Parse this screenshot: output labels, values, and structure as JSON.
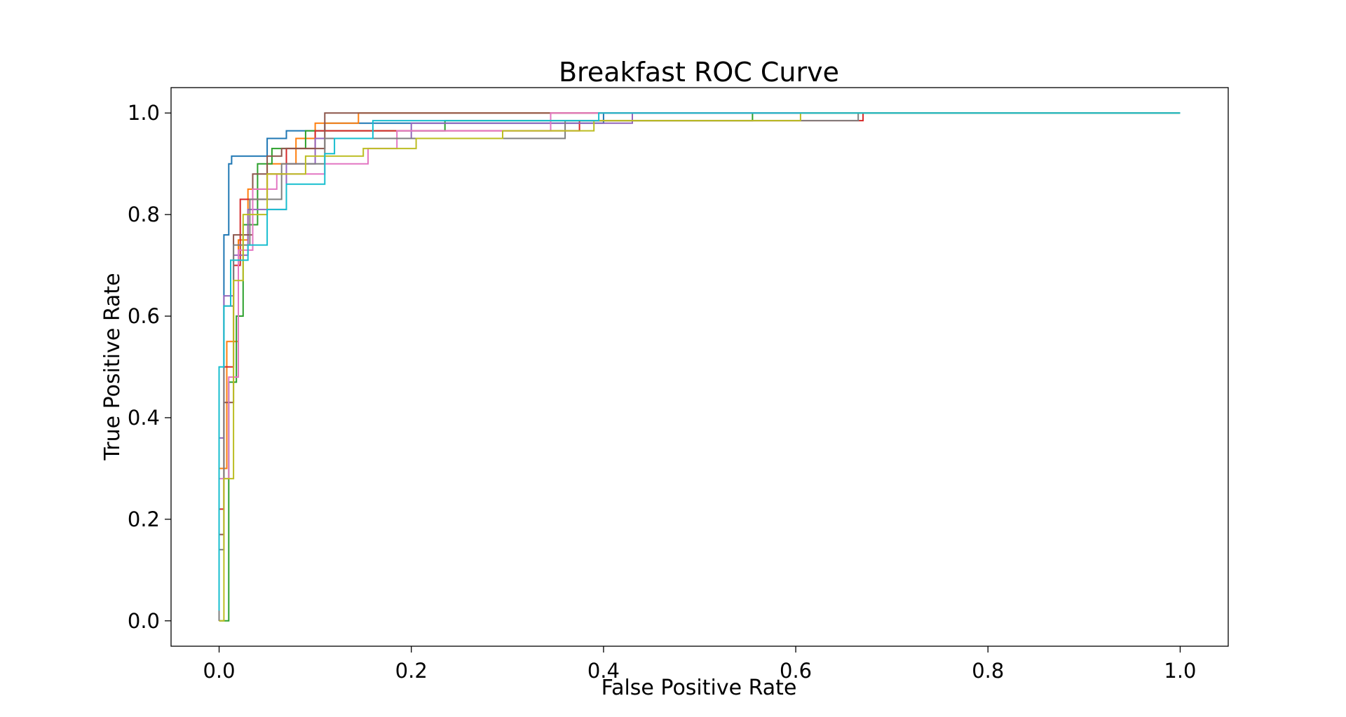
{
  "chart_data": {
    "type": "line",
    "title": "Breakfast ROC Curve",
    "xlabel": "False Positive Rate",
    "ylabel": "True Positive Rate",
    "xlim": [
      -0.05,
      1.05
    ],
    "ylim": [
      -0.05,
      1.05
    ],
    "xticks": [
      0.0,
      0.2,
      0.4,
      0.6,
      0.8,
      1.0
    ],
    "xtick_labels": [
      "0.0",
      "0.2",
      "0.4",
      "0.6",
      "0.8",
      "1.0"
    ],
    "yticks": [
      0.0,
      0.2,
      0.4,
      0.6,
      0.8,
      1.0
    ],
    "ytick_labels": [
      "0.0",
      "0.2",
      "0.4",
      "0.6",
      "0.8",
      "1.0"
    ],
    "grid": false,
    "series": [
      {
        "color": "#1f77b4",
        "points": [
          [
            0,
            0
          ],
          [
            0,
            0.5
          ],
          [
            0.005,
            0.5
          ],
          [
            0.005,
            0.76
          ],
          [
            0.01,
            0.76
          ],
          [
            0.01,
            0.9
          ],
          [
            0.013,
            0.9
          ],
          [
            0.013,
            0.915
          ],
          [
            0.05,
            0.915
          ],
          [
            0.05,
            0.95
          ],
          [
            0.07,
            0.95
          ],
          [
            0.07,
            0.965
          ],
          [
            0.11,
            0.965
          ],
          [
            0.11,
            0.98
          ],
          [
            0.4,
            0.98
          ],
          [
            0.4,
            1.0
          ],
          [
            1.0,
            1.0
          ]
        ]
      },
      {
        "color": "#ff7f0e",
        "points": [
          [
            0,
            0
          ],
          [
            0,
            0.3
          ],
          [
            0.008,
            0.3
          ],
          [
            0.008,
            0.55
          ],
          [
            0.02,
            0.55
          ],
          [
            0.02,
            0.75
          ],
          [
            0.03,
            0.75
          ],
          [
            0.03,
            0.85
          ],
          [
            0.05,
            0.85
          ],
          [
            0.05,
            0.9
          ],
          [
            0.08,
            0.9
          ],
          [
            0.08,
            0.95
          ],
          [
            0.1,
            0.95
          ],
          [
            0.1,
            0.98
          ],
          [
            0.145,
            0.98
          ],
          [
            0.145,
            1.0
          ],
          [
            1.0,
            1.0
          ]
        ]
      },
      {
        "color": "#2ca02c",
        "points": [
          [
            0,
            0
          ],
          [
            0.01,
            0
          ],
          [
            0.01,
            0.47
          ],
          [
            0.018,
            0.47
          ],
          [
            0.018,
            0.6
          ],
          [
            0.025,
            0.6
          ],
          [
            0.025,
            0.78
          ],
          [
            0.04,
            0.78
          ],
          [
            0.04,
            0.9
          ],
          [
            0.055,
            0.9
          ],
          [
            0.055,
            0.93
          ],
          [
            0.09,
            0.93
          ],
          [
            0.09,
            0.965
          ],
          [
            0.235,
            0.965
          ],
          [
            0.235,
            0.985
          ],
          [
            0.555,
            0.985
          ],
          [
            0.555,
            1.0
          ],
          [
            1.0,
            1.0
          ]
        ]
      },
      {
        "color": "#d62728",
        "points": [
          [
            0,
            0
          ],
          [
            0,
            0.22
          ],
          [
            0.005,
            0.22
          ],
          [
            0.005,
            0.5
          ],
          [
            0.015,
            0.5
          ],
          [
            0.015,
            0.7
          ],
          [
            0.022,
            0.7
          ],
          [
            0.022,
            0.83
          ],
          [
            0.05,
            0.83
          ],
          [
            0.05,
            0.88
          ],
          [
            0.07,
            0.88
          ],
          [
            0.07,
            0.93
          ],
          [
            0.1,
            0.93
          ],
          [
            0.1,
            0.965
          ],
          [
            0.375,
            0.965
          ],
          [
            0.375,
            0.985
          ],
          [
            0.67,
            0.985
          ],
          [
            0.67,
            1.0
          ],
          [
            1.0,
            1.0
          ]
        ]
      },
      {
        "color": "#9467bd",
        "points": [
          [
            0,
            0
          ],
          [
            0,
            0.36
          ],
          [
            0.005,
            0.36
          ],
          [
            0.005,
            0.64
          ],
          [
            0.015,
            0.64
          ],
          [
            0.015,
            0.72
          ],
          [
            0.03,
            0.72
          ],
          [
            0.03,
            0.81
          ],
          [
            0.07,
            0.81
          ],
          [
            0.07,
            0.9
          ],
          [
            0.1,
            0.9
          ],
          [
            0.1,
            0.95
          ],
          [
            0.2,
            0.95
          ],
          [
            0.2,
            0.98
          ],
          [
            0.43,
            0.98
          ],
          [
            0.43,
            1.0
          ],
          [
            1.0,
            1.0
          ]
        ]
      },
      {
        "color": "#8c564b",
        "points": [
          [
            0,
            0
          ],
          [
            0,
            0.17
          ],
          [
            0.005,
            0.17
          ],
          [
            0.005,
            0.43
          ],
          [
            0.015,
            0.43
          ],
          [
            0.015,
            0.76
          ],
          [
            0.035,
            0.76
          ],
          [
            0.035,
            0.88
          ],
          [
            0.05,
            0.88
          ],
          [
            0.05,
            0.915
          ],
          [
            0.065,
            0.915
          ],
          [
            0.065,
            0.93
          ],
          [
            0.11,
            0.93
          ],
          [
            0.11,
            1.0
          ],
          [
            1.0,
            1.0
          ]
        ]
      },
      {
        "color": "#e377c2",
        "points": [
          [
            0,
            0
          ],
          [
            0,
            0.28
          ],
          [
            0.01,
            0.28
          ],
          [
            0.01,
            0.48
          ],
          [
            0.02,
            0.48
          ],
          [
            0.02,
            0.73
          ],
          [
            0.035,
            0.73
          ],
          [
            0.035,
            0.85
          ],
          [
            0.06,
            0.85
          ],
          [
            0.06,
            0.88
          ],
          [
            0.11,
            0.88
          ],
          [
            0.11,
            0.9
          ],
          [
            0.155,
            0.9
          ],
          [
            0.155,
            0.93
          ],
          [
            0.185,
            0.93
          ],
          [
            0.185,
            0.965
          ],
          [
            0.345,
            0.965
          ],
          [
            0.345,
            1.0
          ],
          [
            1.0,
            1.0
          ]
        ]
      },
      {
        "color": "#7f7f7f",
        "points": [
          [
            0,
            0
          ],
          [
            0,
            0.14
          ],
          [
            0.005,
            0.14
          ],
          [
            0.005,
            0.62
          ],
          [
            0.015,
            0.62
          ],
          [
            0.015,
            0.74
          ],
          [
            0.032,
            0.74
          ],
          [
            0.032,
            0.83
          ],
          [
            0.065,
            0.83
          ],
          [
            0.065,
            0.9
          ],
          [
            0.11,
            0.9
          ],
          [
            0.11,
            0.95
          ],
          [
            0.36,
            0.95
          ],
          [
            0.36,
            0.985
          ],
          [
            0.665,
            0.985
          ],
          [
            0.665,
            1.0
          ],
          [
            1.0,
            1.0
          ]
        ]
      },
      {
        "color": "#bcbd22",
        "points": [
          [
            0,
            0
          ],
          [
            0.005,
            0
          ],
          [
            0.005,
            0.28
          ],
          [
            0.015,
            0.28
          ],
          [
            0.015,
            0.67
          ],
          [
            0.025,
            0.67
          ],
          [
            0.025,
            0.8
          ],
          [
            0.05,
            0.8
          ],
          [
            0.05,
            0.88
          ],
          [
            0.09,
            0.88
          ],
          [
            0.09,
            0.915
          ],
          [
            0.15,
            0.915
          ],
          [
            0.15,
            0.93
          ],
          [
            0.205,
            0.93
          ],
          [
            0.205,
            0.95
          ],
          [
            0.295,
            0.95
          ],
          [
            0.295,
            0.965
          ],
          [
            0.39,
            0.965
          ],
          [
            0.39,
            0.985
          ],
          [
            0.605,
            0.985
          ],
          [
            0.605,
            1.0
          ],
          [
            1.0,
            1.0
          ]
        ]
      },
      {
        "color": "#17becf",
        "points": [
          [
            0,
            0.02
          ],
          [
            0,
            0.5
          ],
          [
            0.005,
            0.5
          ],
          [
            0.005,
            0.62
          ],
          [
            0.012,
            0.62
          ],
          [
            0.012,
            0.71
          ],
          [
            0.03,
            0.71
          ],
          [
            0.03,
            0.74
          ],
          [
            0.05,
            0.74
          ],
          [
            0.05,
            0.81
          ],
          [
            0.07,
            0.81
          ],
          [
            0.07,
            0.86
          ],
          [
            0.11,
            0.86
          ],
          [
            0.11,
            0.92
          ],
          [
            0.12,
            0.92
          ],
          [
            0.12,
            0.95
          ],
          [
            0.16,
            0.95
          ],
          [
            0.16,
            0.985
          ],
          [
            0.395,
            0.985
          ],
          [
            0.395,
            1.0
          ],
          [
            1.0,
            1.0
          ]
        ]
      }
    ]
  }
}
